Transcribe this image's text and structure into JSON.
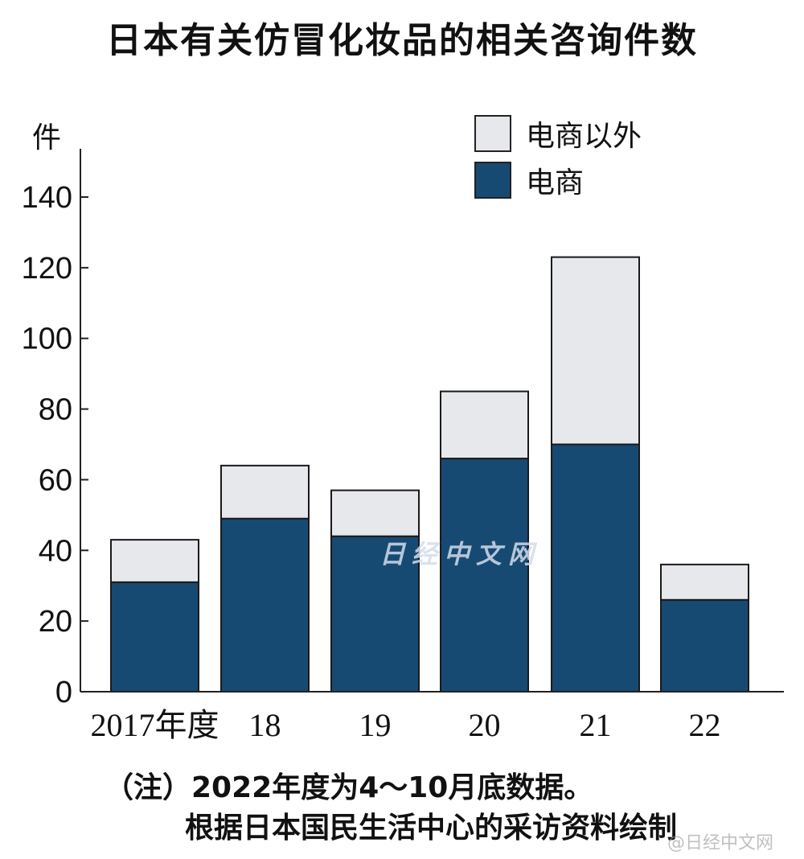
{
  "chart_data": {
    "type": "bar",
    "stacked": true,
    "title": "日本有关仿冒化妆品的相关咨询件数",
    "ylabel": "件",
    "xlabel": "",
    "ylim": [
      0,
      150
    ],
    "yticks": [
      0,
      20,
      40,
      60,
      80,
      100,
      120,
      140
    ],
    "categories": [
      "2017年度",
      "18",
      "19",
      "20",
      "21",
      "22"
    ],
    "series": [
      {
        "name": "电商",
        "color": "#174a73",
        "values": [
          31,
          49,
          44,
          66,
          70,
          26
        ]
      },
      {
        "name": "电商以外",
        "color": "#e7e8ec",
        "values": [
          12,
          15,
          13,
          19,
          53,
          10
        ]
      }
    ],
    "legend_position": "top-right",
    "grid": false,
    "notes": [
      "（注）2022年度为4～10月底数据。",
      "根据日本国民生活中心的采访资料绘制"
    ]
  },
  "watermarks": [
    "日经中文网",
    "@日经中文网"
  ]
}
